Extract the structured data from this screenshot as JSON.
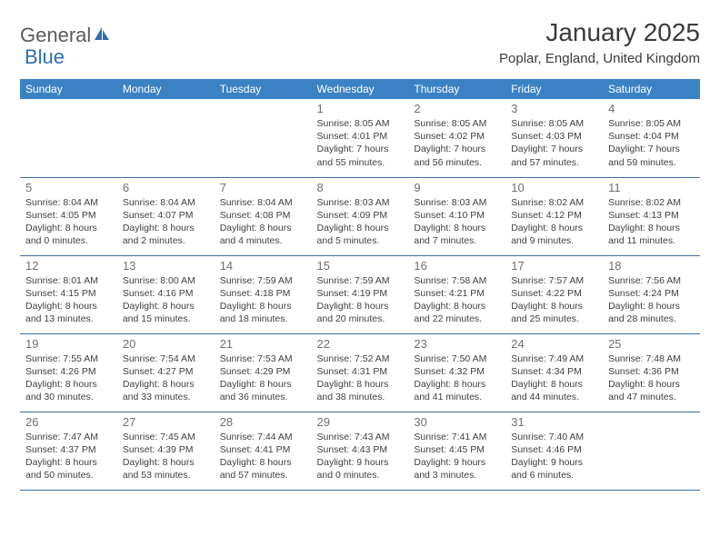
{
  "header": {
    "logo_general": "General",
    "logo_blue": "Blue",
    "month_title": "January 2025",
    "location": "Poplar, England, United Kingdom"
  },
  "colors": {
    "header_bg": "#3b82c4",
    "header_text": "#ffffff",
    "row_border": "#3b6fa0",
    "daynum": "#707070",
    "body_text": "#404040",
    "logo_gray": "#5a5a5a",
    "logo_blue": "#2f6fad"
  },
  "day_labels": [
    "Sunday",
    "Monday",
    "Tuesday",
    "Wednesday",
    "Thursday",
    "Friday",
    "Saturday"
  ],
  "weeks": [
    [
      null,
      null,
      null,
      {
        "n": "1",
        "sr": "Sunrise: 8:05 AM",
        "ss": "Sunset: 4:01 PM",
        "d1": "Daylight: 7 hours",
        "d2": "and 55 minutes."
      },
      {
        "n": "2",
        "sr": "Sunrise: 8:05 AM",
        "ss": "Sunset: 4:02 PM",
        "d1": "Daylight: 7 hours",
        "d2": "and 56 minutes."
      },
      {
        "n": "3",
        "sr": "Sunrise: 8:05 AM",
        "ss": "Sunset: 4:03 PM",
        "d1": "Daylight: 7 hours",
        "d2": "and 57 minutes."
      },
      {
        "n": "4",
        "sr": "Sunrise: 8:05 AM",
        "ss": "Sunset: 4:04 PM",
        "d1": "Daylight: 7 hours",
        "d2": "and 59 minutes."
      }
    ],
    [
      {
        "n": "5",
        "sr": "Sunrise: 8:04 AM",
        "ss": "Sunset: 4:05 PM",
        "d1": "Daylight: 8 hours",
        "d2": "and 0 minutes."
      },
      {
        "n": "6",
        "sr": "Sunrise: 8:04 AM",
        "ss": "Sunset: 4:07 PM",
        "d1": "Daylight: 8 hours",
        "d2": "and 2 minutes."
      },
      {
        "n": "7",
        "sr": "Sunrise: 8:04 AM",
        "ss": "Sunset: 4:08 PM",
        "d1": "Daylight: 8 hours",
        "d2": "and 4 minutes."
      },
      {
        "n": "8",
        "sr": "Sunrise: 8:03 AM",
        "ss": "Sunset: 4:09 PM",
        "d1": "Daylight: 8 hours",
        "d2": "and 5 minutes."
      },
      {
        "n": "9",
        "sr": "Sunrise: 8:03 AM",
        "ss": "Sunset: 4:10 PM",
        "d1": "Daylight: 8 hours",
        "d2": "and 7 minutes."
      },
      {
        "n": "10",
        "sr": "Sunrise: 8:02 AM",
        "ss": "Sunset: 4:12 PM",
        "d1": "Daylight: 8 hours",
        "d2": "and 9 minutes."
      },
      {
        "n": "11",
        "sr": "Sunrise: 8:02 AM",
        "ss": "Sunset: 4:13 PM",
        "d1": "Daylight: 8 hours",
        "d2": "and 11 minutes."
      }
    ],
    [
      {
        "n": "12",
        "sr": "Sunrise: 8:01 AM",
        "ss": "Sunset: 4:15 PM",
        "d1": "Daylight: 8 hours",
        "d2": "and 13 minutes."
      },
      {
        "n": "13",
        "sr": "Sunrise: 8:00 AM",
        "ss": "Sunset: 4:16 PM",
        "d1": "Daylight: 8 hours",
        "d2": "and 15 minutes."
      },
      {
        "n": "14",
        "sr": "Sunrise: 7:59 AM",
        "ss": "Sunset: 4:18 PM",
        "d1": "Daylight: 8 hours",
        "d2": "and 18 minutes."
      },
      {
        "n": "15",
        "sr": "Sunrise: 7:59 AM",
        "ss": "Sunset: 4:19 PM",
        "d1": "Daylight: 8 hours",
        "d2": "and 20 minutes."
      },
      {
        "n": "16",
        "sr": "Sunrise: 7:58 AM",
        "ss": "Sunset: 4:21 PM",
        "d1": "Daylight: 8 hours",
        "d2": "and 22 minutes."
      },
      {
        "n": "17",
        "sr": "Sunrise: 7:57 AM",
        "ss": "Sunset: 4:22 PM",
        "d1": "Daylight: 8 hours",
        "d2": "and 25 minutes."
      },
      {
        "n": "18",
        "sr": "Sunrise: 7:56 AM",
        "ss": "Sunset: 4:24 PM",
        "d1": "Daylight: 8 hours",
        "d2": "and 28 minutes."
      }
    ],
    [
      {
        "n": "19",
        "sr": "Sunrise: 7:55 AM",
        "ss": "Sunset: 4:26 PM",
        "d1": "Daylight: 8 hours",
        "d2": "and 30 minutes."
      },
      {
        "n": "20",
        "sr": "Sunrise: 7:54 AM",
        "ss": "Sunset: 4:27 PM",
        "d1": "Daylight: 8 hours",
        "d2": "and 33 minutes."
      },
      {
        "n": "21",
        "sr": "Sunrise: 7:53 AM",
        "ss": "Sunset: 4:29 PM",
        "d1": "Daylight: 8 hours",
        "d2": "and 36 minutes."
      },
      {
        "n": "22",
        "sr": "Sunrise: 7:52 AM",
        "ss": "Sunset: 4:31 PM",
        "d1": "Daylight: 8 hours",
        "d2": "and 38 minutes."
      },
      {
        "n": "23",
        "sr": "Sunrise: 7:50 AM",
        "ss": "Sunset: 4:32 PM",
        "d1": "Daylight: 8 hours",
        "d2": "and 41 minutes."
      },
      {
        "n": "24",
        "sr": "Sunrise: 7:49 AM",
        "ss": "Sunset: 4:34 PM",
        "d1": "Daylight: 8 hours",
        "d2": "and 44 minutes."
      },
      {
        "n": "25",
        "sr": "Sunrise: 7:48 AM",
        "ss": "Sunset: 4:36 PM",
        "d1": "Daylight: 8 hours",
        "d2": "and 47 minutes."
      }
    ],
    [
      {
        "n": "26",
        "sr": "Sunrise: 7:47 AM",
        "ss": "Sunset: 4:37 PM",
        "d1": "Daylight: 8 hours",
        "d2": "and 50 minutes."
      },
      {
        "n": "27",
        "sr": "Sunrise: 7:45 AM",
        "ss": "Sunset: 4:39 PM",
        "d1": "Daylight: 8 hours",
        "d2": "and 53 minutes."
      },
      {
        "n": "28",
        "sr": "Sunrise: 7:44 AM",
        "ss": "Sunset: 4:41 PM",
        "d1": "Daylight: 8 hours",
        "d2": "and 57 minutes."
      },
      {
        "n": "29",
        "sr": "Sunrise: 7:43 AM",
        "ss": "Sunset: 4:43 PM",
        "d1": "Daylight: 9 hours",
        "d2": "and 0 minutes."
      },
      {
        "n": "30",
        "sr": "Sunrise: 7:41 AM",
        "ss": "Sunset: 4:45 PM",
        "d1": "Daylight: 9 hours",
        "d2": "and 3 minutes."
      },
      {
        "n": "31",
        "sr": "Sunrise: 7:40 AM",
        "ss": "Sunset: 4:46 PM",
        "d1": "Daylight: 9 hours",
        "d2": "and 6 minutes."
      },
      null
    ]
  ]
}
